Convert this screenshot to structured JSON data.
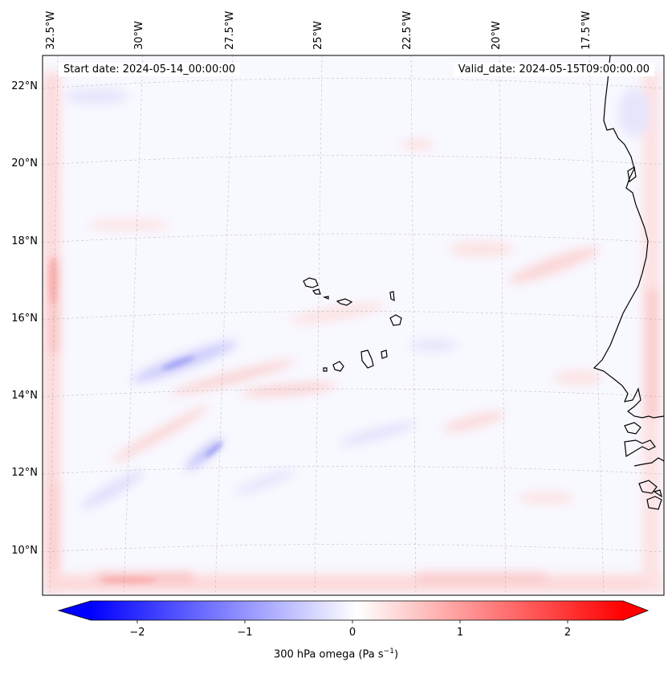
{
  "map": {
    "start_date_text": "Start date: 2024-05-14_00:00:00",
    "valid_date_text": "Valid_date: 2024-05-15T09:00:00.00",
    "lon_labels": [
      "32.5°W",
      "30°W",
      "27.5°W",
      "25°W",
      "22.5°W",
      "20°W",
      "17.5°W"
    ],
    "lat_labels": [
      "22°N",
      "20°N",
      "18°N",
      "16°N",
      "14°N",
      "12°N",
      "10°N"
    ],
    "field": "300 hPa omega",
    "colormap": "bwr",
    "coastline_color": "#000000"
  },
  "colorbar": {
    "label_main": "300 hPa omega (Pa s",
    "label_exp": "−1",
    "label_end": ")",
    "ticks": [
      "−2",
      "−1",
      "0",
      "1",
      "2"
    ],
    "min_color": "#0000ff",
    "mid_color": "#ffffff",
    "max_color": "#ff0000"
  }
}
